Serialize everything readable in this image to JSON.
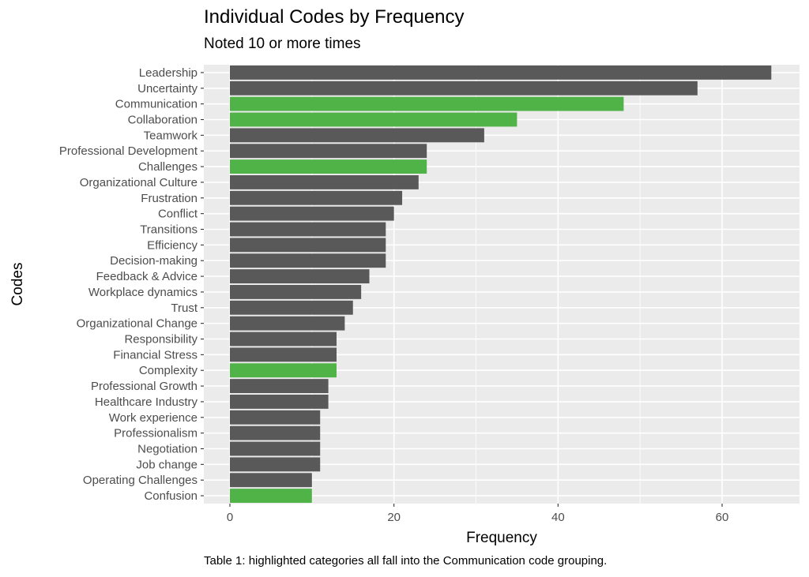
{
  "chart_data": {
    "type": "bar",
    "orientation": "horizontal",
    "title": "Individual Codes by Frequency",
    "subtitle": "Noted 10 or more times",
    "xlabel": "Frequency",
    "ylabel": "Codes",
    "xlim": [
      0,
      68
    ],
    "xticks": [
      0,
      20,
      40,
      60
    ],
    "grid": true,
    "caption": "Table 1:  highlighted categories all fall into the Communication code grouping.",
    "colors": {
      "default": "#595959",
      "highlight": "#50b347",
      "panel": "#ebebeb",
      "grid": "#ffffff"
    },
    "bars": [
      {
        "label": "Leadership",
        "value": 66,
        "highlight": false
      },
      {
        "label": "Uncertainty",
        "value": 57,
        "highlight": false
      },
      {
        "label": "Communication",
        "value": 48,
        "highlight": true
      },
      {
        "label": "Collaboration",
        "value": 35,
        "highlight": true
      },
      {
        "label": "Teamwork",
        "value": 31,
        "highlight": false
      },
      {
        "label": "Professional Development",
        "value": 24,
        "highlight": false
      },
      {
        "label": "Challenges",
        "value": 24,
        "highlight": true
      },
      {
        "label": "Organizational Culture",
        "value": 23,
        "highlight": false
      },
      {
        "label": "Frustration",
        "value": 21,
        "highlight": false
      },
      {
        "label": "Conflict",
        "value": 20,
        "highlight": false
      },
      {
        "label": "Transitions",
        "value": 19,
        "highlight": false
      },
      {
        "label": "Efficiency",
        "value": 19,
        "highlight": false
      },
      {
        "label": "Decision-making",
        "value": 19,
        "highlight": false
      },
      {
        "label": "Feedback & Advice",
        "value": 17,
        "highlight": false
      },
      {
        "label": "Workplace dynamics",
        "value": 16,
        "highlight": false
      },
      {
        "label": "Trust",
        "value": 15,
        "highlight": false
      },
      {
        "label": "Organizational Change",
        "value": 14,
        "highlight": false
      },
      {
        "label": "Responsibility",
        "value": 13,
        "highlight": false
      },
      {
        "label": "Financial Stress",
        "value": 13,
        "highlight": false
      },
      {
        "label": "Complexity",
        "value": 13,
        "highlight": true
      },
      {
        "label": "Professional Growth",
        "value": 12,
        "highlight": false
      },
      {
        "label": "Healthcare Industry",
        "value": 12,
        "highlight": false
      },
      {
        "label": "Work experience",
        "value": 11,
        "highlight": false
      },
      {
        "label": "Professionalism",
        "value": 11,
        "highlight": false
      },
      {
        "label": "Negotiation",
        "value": 11,
        "highlight": false
      },
      {
        "label": "Job change",
        "value": 11,
        "highlight": false
      },
      {
        "label": "Operating Challenges",
        "value": 10,
        "highlight": false
      },
      {
        "label": "Confusion",
        "value": 10,
        "highlight": true
      }
    ]
  }
}
